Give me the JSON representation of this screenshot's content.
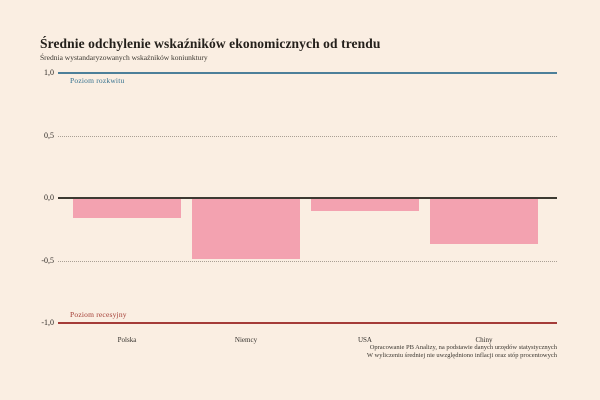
{
  "header": {
    "title": "Średnie odchylenie wskaźników ekonomicznych od trendu",
    "subtitle": "Średnia wystandaryzowanych wskaźników koniunktury"
  },
  "chart_data": {
    "type": "bar",
    "title": "Średnie odchylenie wskaźników ekonomicznych od trendu",
    "subtitle": "Średnia wystandaryzowanych wskaźników koniunktury",
    "categories": [
      "Polska",
      "Niemcy",
      "USA",
      "Chiny"
    ],
    "values": [
      -0.16,
      -0.49,
      -0.1,
      -0.37
    ],
    "xlabel": "",
    "ylabel": "",
    "ylim": [
      -1.0,
      1.0
    ],
    "legend_position": "none",
    "bar_color": "#f3a2b0",
    "axis_lines": [
      {
        "value": 1.0,
        "label": "1,0",
        "style": "solid",
        "color": "#4c7f99",
        "name": "boom-threshold-line"
      },
      {
        "value": 0.5,
        "label": "0,5",
        "style": "dotted",
        "color": "#a99f94",
        "name": "gridline-05"
      },
      {
        "value": 0.0,
        "label": "0,0",
        "style": "solid",
        "color": "#3c3a32",
        "name": "zero-axis-line"
      },
      {
        "value": -0.5,
        "label": "-0,5",
        "style": "dotted",
        "color": "#a99f94",
        "name": "gridline-neg05"
      },
      {
        "value": -1.0,
        "label": "-1,0",
        "style": "solid",
        "color": "#a43b38",
        "name": "recession-threshold-line"
      }
    ],
    "annotations": [
      {
        "text": "Poziom rozkwitu",
        "color": "#33708f",
        "position": "below-top-line"
      },
      {
        "text": "Poziom recesyjny",
        "color": "#a23a32",
        "position": "above-bottom-line"
      }
    ]
  },
  "footer": {
    "line1": "Opracowanie PB Analizy, na podstawie danych urzędów statystycznych",
    "line2": "W wyliczeniu średniej nie uwzględniono inflacji oraz stóp procentowych"
  }
}
